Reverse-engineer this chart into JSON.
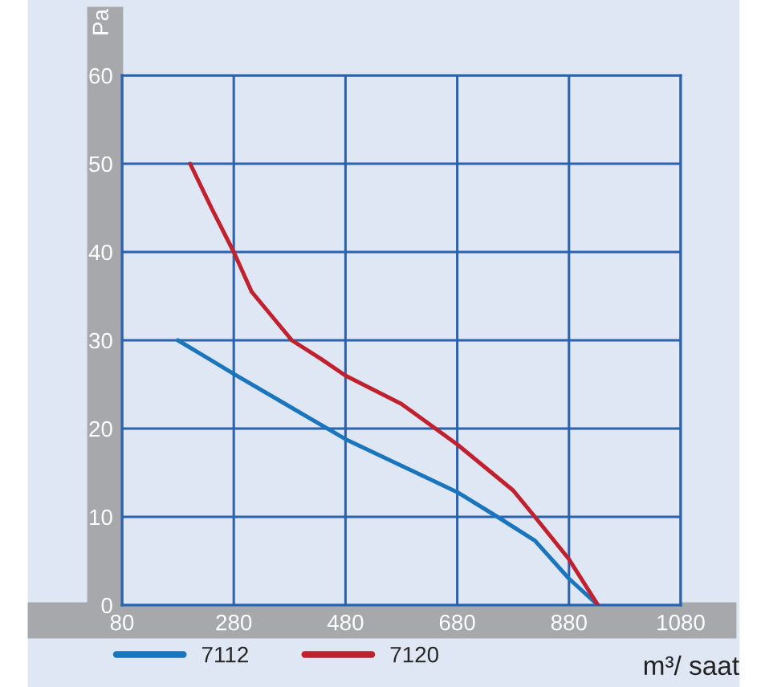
{
  "chart_data": {
    "type": "line",
    "xlabel": "m³/ saat",
    "ylabel": "Pa",
    "xlim": [
      80,
      1080
    ],
    "xticks": [
      80,
      280,
      480,
      680,
      880,
      1080
    ],
    "ylim": [
      0,
      60
    ],
    "yticks": [
      0,
      10,
      20,
      30,
      40,
      50,
      60
    ],
    "grid": true,
    "legend": "bottom",
    "line_style": "solid",
    "marker": "none",
    "series": [
      {
        "name": "7112",
        "color": "#1b75bc",
        "x": [
          180,
          280,
          380,
          480,
          580,
          680,
          752,
          819,
          880,
          932
        ],
        "values": [
          30,
          26.2,
          22.5,
          18.8,
          15.8,
          12.8,
          10,
          7.3,
          3,
          0
        ]
      },
      {
        "name": "7120",
        "color": "#c1202f",
        "x": [
          202,
          240,
          280,
          312,
          384,
          436,
          480,
          580,
          680,
          780,
          819,
          880,
          932
        ],
        "values": [
          50,
          45,
          40,
          35.5,
          30,
          27.9,
          26,
          22.8,
          18.2,
          13,
          10,
          5.2,
          0
        ]
      }
    ]
  }
}
